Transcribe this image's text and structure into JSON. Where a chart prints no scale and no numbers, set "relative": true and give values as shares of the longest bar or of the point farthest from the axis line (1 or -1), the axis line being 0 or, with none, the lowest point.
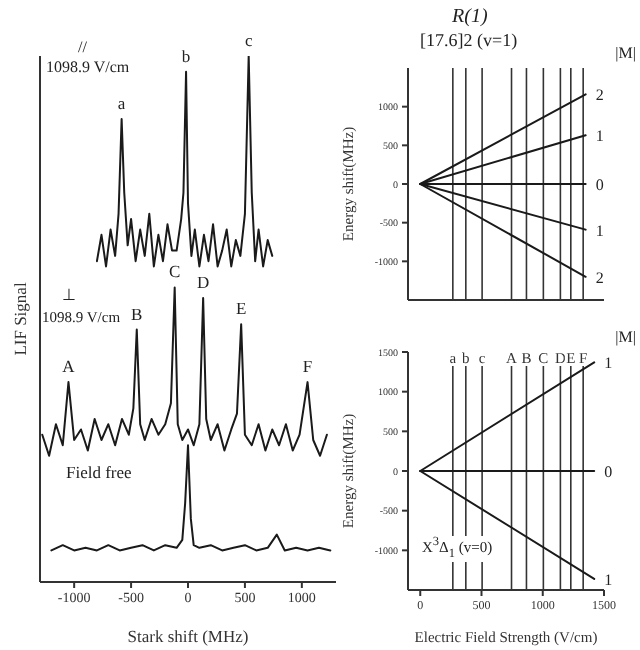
{
  "chart_data": [
    {
      "type": "line",
      "relative": true,
      "xlabel": "Stark shift  (MHz)",
      "ylabel": "LIF Signal",
      "xlim": [
        -1300,
        1300
      ],
      "xticks": [
        -1000,
        -500,
        0,
        500,
        1000
      ],
      "grid": false,
      "legend": false,
      "marker": "none",
      "line_style": "solid",
      "series": [
        {
          "color": "#1a1a1a",
          "x": [
            -800,
            -760,
            -720,
            -680,
            -640,
            -610,
            -583,
            -560,
            -530,
            -500,
            -460,
            -420,
            -380,
            -340,
            -300,
            -260,
            -220,
            -180,
            -140,
            -100,
            -60,
            -40,
            -17,
            0,
            30,
            60,
            100,
            140,
            180,
            220,
            260,
            300,
            340,
            380,
            420,
            460,
            500,
            533,
            560,
            590,
            620,
            660,
            700,
            740
          ],
          "values": [
            0.61,
            0.66,
            0.6,
            0.67,
            0.62,
            0.7,
            0.88,
            0.74,
            0.64,
            0.69,
            0.61,
            0.67,
            0.62,
            0.7,
            0.6,
            0.66,
            0.61,
            0.68,
            0.63,
            0.63,
            0.69,
            0.74,
            0.97,
            0.72,
            0.62,
            0.67,
            0.6,
            0.66,
            0.61,
            0.68,
            0.6,
            0.63,
            0.67,
            0.6,
            0.65,
            0.62,
            0.7,
            1.0,
            0.74,
            0.61,
            0.67,
            0.6,
            0.65,
            0.62
          ]
        },
        {
          "color": "#1a1a1a",
          "x": [
            -1280,
            -1220,
            -1160,
            -1100,
            -1050,
            -1000,
            -940,
            -880,
            -820,
            -760,
            -700,
            -640,
            -580,
            -520,
            -480,
            -450,
            -420,
            -380,
            -320,
            -260,
            -200,
            -150,
            -117,
            -90,
            -50,
            0,
            50,
            100,
            133,
            160,
            200,
            260,
            320,
            380,
            430,
            467,
            500,
            560,
            620,
            680,
            740,
            800,
            860,
            920,
            980,
            1050,
            1100,
            1160,
            1220
          ],
          "values": [
            0.28,
            0.24,
            0.3,
            0.26,
            0.38,
            0.27,
            0.29,
            0.25,
            0.31,
            0.27,
            0.3,
            0.26,
            0.31,
            0.28,
            0.33,
            0.48,
            0.3,
            0.27,
            0.31,
            0.28,
            0.3,
            0.34,
            0.56,
            0.3,
            0.27,
            0.29,
            0.26,
            0.3,
            0.54,
            0.31,
            0.27,
            0.3,
            0.25,
            0.29,
            0.32,
            0.49,
            0.28,
            0.26,
            0.3,
            0.25,
            0.29,
            0.26,
            0.3,
            0.25,
            0.28,
            0.38,
            0.27,
            0.24,
            0.28
          ]
        },
        {
          "color": "#1a1a1a",
          "x": [
            -1200,
            -1100,
            -1000,
            -900,
            -800,
            -700,
            -600,
            -500,
            -400,
            -300,
            -200,
            -100,
            -50,
            -25,
            0,
            25,
            50,
            100,
            200,
            300,
            400,
            500,
            600,
            700,
            780,
            850,
            950,
            1050,
            1150,
            1250
          ],
          "values": [
            0.06,
            0.07,
            0.06,
            0.065,
            0.06,
            0.07,
            0.06,
            0.065,
            0.07,
            0.06,
            0.07,
            0.065,
            0.08,
            0.15,
            0.26,
            0.12,
            0.07,
            0.065,
            0.07,
            0.06,
            0.065,
            0.07,
            0.06,
            0.065,
            0.09,
            0.06,
            0.065,
            0.06,
            0.065,
            0.06
          ]
        }
      ],
      "annotations": [
        "//",
        "1098.9 V/cm",
        "⊥",
        "1098.9 V/cm",
        "Field free",
        {
          "text": "a",
          "x": -583,
          "y": 0.88
        },
        {
          "text": "b",
          "x": -17,
          "y": 0.97
        },
        {
          "text": "c",
          "x": 533,
          "y": 1.0
        },
        {
          "text": "A",
          "x": -1050,
          "y": 0.38
        },
        {
          "text": "B",
          "x": -450,
          "y": 0.48
        },
        {
          "text": "C",
          "x": -117,
          "y": 0.56
        },
        {
          "text": "D",
          "x": 133,
          "y": 0.54
        },
        {
          "text": "E",
          "x": 467,
          "y": 0.49
        },
        {
          "text": "F",
          "x": 1050,
          "y": 0.38
        }
      ]
    },
    {
      "type": "line",
      "title": "R(1)",
      "subtitle": "[17.6]2 (v=1)",
      "ylabel": "Energy shift(MHz)",
      "legend_title": "|M|",
      "xlim": [
        -100,
        1500
      ],
      "xticks": [
        0,
        500,
        1000,
        1500
      ],
      "ylim": [
        -1500,
        1500
      ],
      "yticks": [
        -1000,
        -500,
        0,
        500,
        1000
      ],
      "tick_labels": "y",
      "grid": false,
      "legend": false,
      "marker": "none",
      "series": [
        {
          "name": "2",
          "color": "#1a1a1a",
          "x": [
            0,
            1350
          ],
          "values": [
            0,
            1160
          ]
        },
        {
          "name": "1",
          "color": "#1a1a1a",
          "x": [
            0,
            1350
          ],
          "values": [
            0,
            630
          ]
        },
        {
          "name": "0",
          "color": "#1a1a1a",
          "x": [
            0,
            1350
          ],
          "values": [
            0,
            0
          ]
        },
        {
          "name": "1",
          "color": "#1a1a1a",
          "x": [
            0,
            1350
          ],
          "values": [
            0,
            -590
          ]
        },
        {
          "name": "2",
          "color": "#1a1a1a",
          "x": [
            0,
            1350
          ],
          "values": [
            0,
            -1200
          ]
        }
      ],
      "ref_lines": [
        {
          "axis": "x",
          "value": 266
        },
        {
          "axis": "x",
          "value": 372
        },
        {
          "axis": "x",
          "value": 505
        },
        {
          "axis": "x",
          "value": 745
        },
        {
          "axis": "x",
          "value": 867
        },
        {
          "axis": "x",
          "value": 1005
        },
        {
          "axis": "x",
          "value": 1144
        },
        {
          "axis": "x",
          "value": 1229
        },
        {
          "axis": "x",
          "value": 1330
        }
      ]
    },
    {
      "type": "line",
      "xlabel": "Electric Field Strength (V/cm)",
      "ylabel": "Energy shift(MHz)",
      "legend_title": "|M|",
      "xlim": [
        -100,
        1500
      ],
      "xticks": [
        0,
        500,
        1000,
        1500
      ],
      "ylim": [
        -1500,
        1500
      ],
      "yticks": [
        -1000,
        -500,
        0,
        500,
        1000,
        1500
      ],
      "grid": false,
      "legend": false,
      "marker": "none",
      "series": [
        {
          "name": "1",
          "color": "#1a1a1a",
          "x": [
            0,
            1420
          ],
          "values": [
            0,
            1370
          ]
        },
        {
          "name": "0",
          "color": "#1a1a1a",
          "x": [
            0,
            1420
          ],
          "values": [
            0,
            0
          ]
        },
        {
          "name": "1",
          "color": "#1a1a1a",
          "x": [
            0,
            1420
          ],
          "values": [
            0,
            -1360
          ]
        }
      ],
      "ref_lines": [
        {
          "axis": "x",
          "value": 266,
          "label": "a"
        },
        {
          "axis": "x",
          "value": 372,
          "label": "b"
        },
        {
          "axis": "x",
          "value": 505,
          "label": "c"
        },
        {
          "axis": "x",
          "value": 745,
          "label": "A"
        },
        {
          "axis": "x",
          "value": 867,
          "label": "B"
        },
        {
          "axis": "x",
          "value": 1005,
          "label": "C"
        },
        {
          "axis": "x",
          "value": 1144,
          "label": "D"
        },
        {
          "axis": "x",
          "value": 1229,
          "label": "E"
        },
        {
          "axis": "x",
          "value": 1330,
          "label": "F"
        }
      ],
      "annotations": [
        "X$^{3}$Δ$_{1}$  (v=0)"
      ]
    }
  ]
}
